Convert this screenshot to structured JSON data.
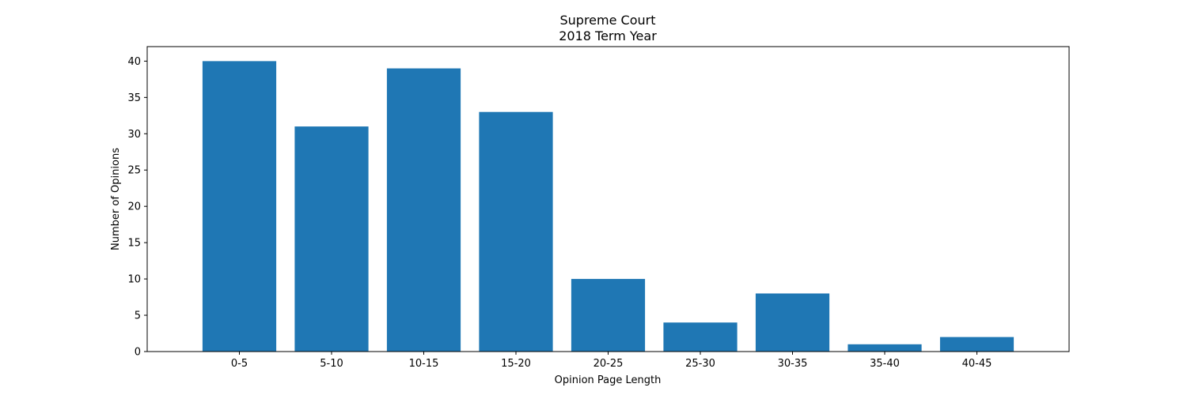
{
  "chart_data": {
    "type": "bar",
    "title": "Supreme Court",
    "subtitle": "2018 Term Year",
    "xlabel": "Opinion Page Length",
    "ylabel": "Number of Opinions",
    "categories": [
      "0-5",
      "5-10",
      "10-15",
      "15-20",
      "20-25",
      "25-30",
      "30-35",
      "35-40",
      "40-45"
    ],
    "values": [
      40,
      31,
      39,
      33,
      10,
      4,
      8,
      1,
      2
    ],
    "ylim": [
      0,
      42
    ],
    "yticks": [
      0,
      5,
      10,
      15,
      20,
      25,
      30,
      35,
      40
    ],
    "grid": false,
    "bar_color": "#1f77b4"
  }
}
